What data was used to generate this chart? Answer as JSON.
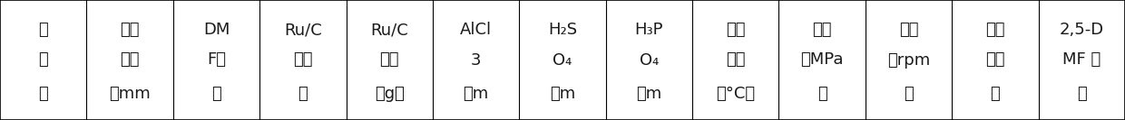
{
  "columns": [
    [
      "实\n施\n例"
    ],
    [
      "果糖\n用量\n（mm"
    ],
    [
      "DM\nF用\n量"
    ],
    [
      "Ru/C\n负载\n量"
    ],
    [
      "Ru/C\n用量\n（g）"
    ],
    [
      "AlCl\n3\n（m"
    ],
    [
      "H₂S\nO₄\n（m"
    ],
    [
      "H₃P\nO₄\n（m"
    ],
    [
      "反应\n温度\n（°C）"
    ],
    [
      "压力\n（MPa\n）"
    ],
    [
      "转速\n（rpm\n）"
    ],
    [
      "果糖\n转化\n率"
    ],
    [
      "2,5-D\nMF 收\n率"
    ]
  ],
  "col_lines": [
    [
      "实",
      "施",
      "例"
    ],
    [
      "果糖",
      "用量",
      "（mm"
    ],
    [
      "DM",
      "F用",
      "量"
    ],
    [
      "Ru/C",
      "负载",
      "量"
    ],
    [
      "Ru/C",
      "用量",
      "（g）"
    ],
    [
      "AlCl",
      "3",
      "（m"
    ],
    [
      "H₂S",
      "O₄",
      "（m"
    ],
    [
      "H₃P",
      "O₄",
      "（m"
    ],
    [
      "反应",
      "温度",
      "（°C）"
    ],
    [
      "压力",
      "（MPa",
      "）"
    ],
    [
      "转速",
      "（rpm",
      "）"
    ],
    [
      "果糖",
      "转化",
      "率"
    ],
    [
      "2,5-D",
      "MF 收",
      "率"
    ]
  ],
  "background_color": "#ffffff",
  "border_color": "#000000",
  "text_color": "#1a1a1a",
  "font_size": 13,
  "figwidth": 12.4,
  "figheight": 1.33,
  "dpi": 100
}
